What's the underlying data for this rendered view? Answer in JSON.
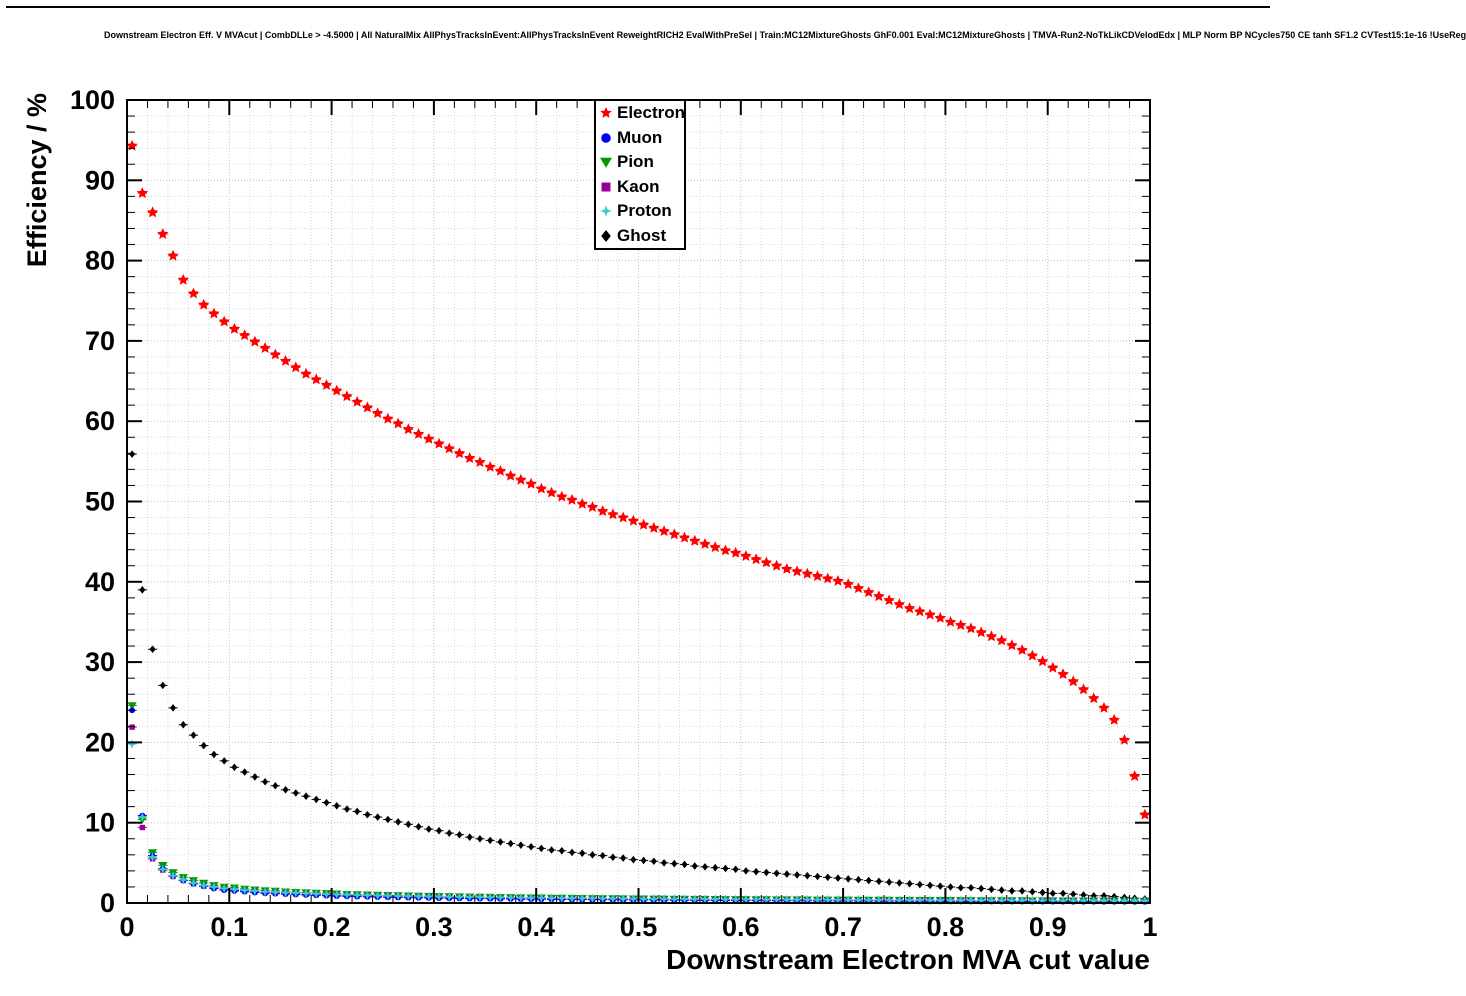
{
  "page": {
    "background": "#ffffff",
    "frame_color": "#000000"
  },
  "chart_data": {
    "type": "scatter",
    "title": "Downstream Electron Eff. V MVAcut | CombDLLe > -4.5000 | All NaturalMix AllPhysTracksInEvent:AllPhysTracksInEvent ReweightRICH2 EvalWithPreSel | Train:MC12MixtureGhosts GhF0.001 Eval:MC12MixtureGhosts | TMVA-Run2-NoTkLikCDVelodEdx | MLP Norm BP NCycles750 CE tanh SF1.2 CVTest15:1e-16 !UseReg",
    "xlabel": "Downstream Electron MVA cut value",
    "ylabel": "Efficiency / %",
    "xlim": [
      0,
      1
    ],
    "ylim": [
      0,
      100
    ],
    "x_ticks": [
      0,
      0.1,
      0.2,
      0.3,
      0.4,
      0.5,
      0.6,
      0.7,
      0.8,
      0.9,
      1
    ],
    "x_tick_labels": [
      "0",
      "0.1",
      "0.2",
      "0.3",
      "0.4",
      "0.5",
      "0.6",
      "0.7",
      "0.8",
      "0.9",
      "1"
    ],
    "y_ticks": [
      0,
      10,
      20,
      30,
      40,
      50,
      60,
      70,
      80,
      90,
      100
    ],
    "y_tick_labels": [
      "0",
      "10",
      "20",
      "30",
      "40",
      "50",
      "60",
      "70",
      "80",
      "90",
      "100"
    ],
    "grid": {
      "style": "dotted",
      "minor_color": "#d8d8d8",
      "major_color": "#c0c0c0"
    },
    "legend": {
      "position": "top-center",
      "border_color": "#000000",
      "background": "#ffffff"
    },
    "x": [
      0.005,
      0.015,
      0.025,
      0.035,
      0.045,
      0.055,
      0.065,
      0.075,
      0.085,
      0.095,
      0.105,
      0.115,
      0.125,
      0.135,
      0.145,
      0.155,
      0.165,
      0.175,
      0.185,
      0.195,
      0.205,
      0.215,
      0.225,
      0.235,
      0.245,
      0.255,
      0.265,
      0.275,
      0.285,
      0.295,
      0.305,
      0.315,
      0.325,
      0.335,
      0.345,
      0.355,
      0.365,
      0.375,
      0.385,
      0.395,
      0.405,
      0.415,
      0.425,
      0.435,
      0.445,
      0.455,
      0.465,
      0.475,
      0.485,
      0.495,
      0.505,
      0.515,
      0.525,
      0.535,
      0.545,
      0.555,
      0.565,
      0.575,
      0.585,
      0.595,
      0.605,
      0.615,
      0.625,
      0.635,
      0.645,
      0.655,
      0.665,
      0.675,
      0.685,
      0.695,
      0.705,
      0.715,
      0.725,
      0.735,
      0.745,
      0.755,
      0.765,
      0.775,
      0.785,
      0.795,
      0.805,
      0.815,
      0.825,
      0.835,
      0.845,
      0.855,
      0.865,
      0.875,
      0.885,
      0.895,
      0.905,
      0.915,
      0.925,
      0.935,
      0.945,
      0.955,
      0.965,
      0.975,
      0.985,
      0.995
    ],
    "series": [
      {
        "name": "Electron",
        "color": "#ff0000",
        "marker": "star",
        "values": [
          94.3,
          88.4,
          86.0,
          83.3,
          80.6,
          77.6,
          75.9,
          74.5,
          73.4,
          72.4,
          71.5,
          70.7,
          69.9,
          69.1,
          68.3,
          67.5,
          66.7,
          65.9,
          65.2,
          64.5,
          63.8,
          63.1,
          62.4,
          61.7,
          61.0,
          60.3,
          59.7,
          59.0,
          58.4,
          57.8,
          57.2,
          56.6,
          56.0,
          55.4,
          54.9,
          54.3,
          53.8,
          53.2,
          52.7,
          52.2,
          51.6,
          51.1,
          50.6,
          50.2,
          49.7,
          49.3,
          48.8,
          48.4,
          48.0,
          47.6,
          47.1,
          46.7,
          46.3,
          45.9,
          45.5,
          45.1,
          44.7,
          44.3,
          43.9,
          43.6,
          43.2,
          42.8,
          42.4,
          42.0,
          41.6,
          41.3,
          41.0,
          40.7,
          40.4,
          40.1,
          39.7,
          39.2,
          38.7,
          38.2,
          37.7,
          37.2,
          36.7,
          36.3,
          35.9,
          35.5,
          35.0,
          34.6,
          34.2,
          33.7,
          33.2,
          32.7,
          32.1,
          31.5,
          30.8,
          30.1,
          29.3,
          28.5,
          27.6,
          26.6,
          25.5,
          24.3,
          22.8,
          20.3,
          15.8,
          11.0
        ]
      },
      {
        "name": "Muon",
        "color": "#0000ff",
        "marker": "circle",
        "values": [
          24.0,
          10.9,
          5.9,
          4.3,
          3.4,
          2.8,
          2.4,
          2.1,
          1.8,
          1.6,
          1.5,
          1.4,
          1.3,
          1.2,
          1.15,
          1.1,
          1.05,
          1.0,
          0.95,
          0.9,
          0.85,
          0.82,
          0.79,
          0.76,
          0.73,
          0.7,
          0.68,
          0.66,
          0.64,
          0.62,
          0.6,
          0.58,
          0.57,
          0.55,
          0.54,
          0.52,
          0.51,
          0.5,
          0.48,
          0.47,
          0.46,
          0.45,
          0.44,
          0.43,
          0.42,
          0.41,
          0.4,
          0.39,
          0.38,
          0.38,
          0.37,
          0.36,
          0.35,
          0.35,
          0.34,
          0.33,
          0.33,
          0.32,
          0.31,
          0.31,
          0.3,
          0.29,
          0.29,
          0.28,
          0.28,
          0.27,
          0.27,
          0.26,
          0.26,
          0.25,
          0.25,
          0.24,
          0.24,
          0.23,
          0.23,
          0.22,
          0.22,
          0.21,
          0.21,
          0.2,
          0.2,
          0.2,
          0.19,
          0.19,
          0.18,
          0.18,
          0.18,
          0.17,
          0.17,
          0.16,
          0.16,
          0.16,
          0.15,
          0.15,
          0.15,
          0.14,
          0.14,
          0.14,
          0.13,
          0.13
        ]
      },
      {
        "name": "Pion",
        "color": "#009900",
        "marker": "triangle-down",
        "values": [
          24.6,
          10.4,
          6.3,
          4.7,
          3.8,
          3.2,
          2.8,
          2.5,
          2.2,
          2.0,
          1.9,
          1.75,
          1.65,
          1.55,
          1.5,
          1.4,
          1.35,
          1.3,
          1.25,
          1.2,
          1.15,
          1.1,
          1.07,
          1.03,
          1.0,
          0.97,
          0.94,
          0.91,
          0.88,
          0.86,
          0.83,
          0.81,
          0.79,
          0.77,
          0.75,
          0.73,
          0.71,
          0.7,
          0.68,
          0.66,
          0.65,
          0.63,
          0.62,
          0.61,
          0.6,
          0.58,
          0.57,
          0.56,
          0.55,
          0.54,
          0.53,
          0.52,
          0.51,
          0.5,
          0.5,
          0.49,
          0.48,
          0.47,
          0.46,
          0.46,
          0.45,
          0.44,
          0.44,
          0.43,
          0.42,
          0.42,
          0.41,
          0.4,
          0.4,
          0.39,
          0.39,
          0.38,
          0.38,
          0.37,
          0.37,
          0.36,
          0.36,
          0.35,
          0.35,
          0.34,
          0.34,
          0.33,
          0.33,
          0.32,
          0.32,
          0.32,
          0.31,
          0.31,
          0.3,
          0.3,
          0.3,
          0.29,
          0.29,
          0.28,
          0.28,
          0.28,
          0.27,
          0.27,
          0.27,
          0.26
        ]
      },
      {
        "name": "Kaon",
        "color": "#990099",
        "marker": "square",
        "values": [
          21.9,
          9.4,
          5.5,
          4.1,
          3.3,
          2.8,
          2.4,
          2.1,
          1.9,
          1.7,
          1.6,
          1.5,
          1.4,
          1.3,
          1.25,
          1.2,
          1.15,
          1.1,
          1.05,
          1.0,
          0.97,
          0.94,
          0.91,
          0.88,
          0.85,
          0.82,
          0.8,
          0.77,
          0.75,
          0.73,
          0.71,
          0.69,
          0.67,
          0.65,
          0.64,
          0.62,
          0.61,
          0.59,
          0.58,
          0.57,
          0.55,
          0.54,
          0.53,
          0.52,
          0.51,
          0.5,
          0.49,
          0.48,
          0.47,
          0.46,
          0.45,
          0.44,
          0.44,
          0.43,
          0.42,
          0.41,
          0.41,
          0.4,
          0.39,
          0.39,
          0.38,
          0.37,
          0.37,
          0.36,
          0.36,
          0.35,
          0.35,
          0.34,
          0.34,
          0.33,
          0.33,
          0.32,
          0.32,
          0.31,
          0.31,
          0.3,
          0.3,
          0.29,
          0.29,
          0.29,
          0.28,
          0.28,
          0.27,
          0.27,
          0.27,
          0.26,
          0.26,
          0.26,
          0.25,
          0.25,
          0.25,
          0.24,
          0.24,
          0.24,
          0.23,
          0.23,
          0.23,
          0.22,
          0.22,
          0.22
        ]
      },
      {
        "name": "Proton",
        "color": "#33cccc",
        "marker": "star4",
        "values": [
          19.8,
          10.7,
          5.7,
          4.2,
          3.4,
          2.9,
          2.5,
          2.2,
          2.0,
          1.8,
          1.7,
          1.6,
          1.5,
          1.4,
          1.35,
          1.3,
          1.25,
          1.2,
          1.15,
          1.1,
          1.07,
          1.04,
          1.0,
          0.97,
          0.94,
          0.91,
          0.89,
          0.86,
          0.84,
          0.82,
          0.8,
          0.78,
          0.76,
          0.74,
          0.72,
          0.7,
          0.69,
          0.67,
          0.66,
          0.64,
          0.63,
          0.62,
          0.6,
          0.59,
          0.58,
          0.57,
          0.56,
          0.55,
          0.54,
          0.53,
          0.52,
          0.51,
          0.51,
          0.5,
          0.49,
          0.48,
          0.48,
          0.47,
          0.46,
          0.45,
          0.45,
          0.44,
          0.43,
          0.43,
          0.42,
          0.42,
          0.41,
          0.41,
          0.4,
          0.4,
          0.39,
          0.39,
          0.38,
          0.38,
          0.37,
          0.37,
          0.36,
          0.36,
          0.35,
          0.35,
          0.34,
          0.34,
          0.34,
          0.33,
          0.33,
          0.32,
          0.32,
          0.32,
          0.31,
          0.31,
          0.31,
          0.3,
          0.3,
          0.3,
          0.29,
          0.29,
          0.29,
          0.28,
          0.28,
          0.28
        ]
      },
      {
        "name": "Ghost",
        "color": "#000000",
        "marker": "diamond",
        "values": [
          55.9,
          39.0,
          31.6,
          27.1,
          24.3,
          22.2,
          20.9,
          19.6,
          18.5,
          17.7,
          16.9,
          16.3,
          15.7,
          15.1,
          14.6,
          14.1,
          13.7,
          13.3,
          12.9,
          12.5,
          12.1,
          11.7,
          11.4,
          11.0,
          10.7,
          10.4,
          10.1,
          9.8,
          9.5,
          9.2,
          9.0,
          8.7,
          8.5,
          8.2,
          8.0,
          7.8,
          7.6,
          7.4,
          7.2,
          7.0,
          6.8,
          6.6,
          6.5,
          6.3,
          6.2,
          6.0,
          5.9,
          5.7,
          5.6,
          5.4,
          5.3,
          5.2,
          5.0,
          4.9,
          4.8,
          4.6,
          4.5,
          4.4,
          4.3,
          4.2,
          4.0,
          3.9,
          3.8,
          3.7,
          3.6,
          3.5,
          3.4,
          3.3,
          3.2,
          3.1,
          3.0,
          2.9,
          2.8,
          2.7,
          2.6,
          2.5,
          2.4,
          2.3,
          2.2,
          2.1,
          2.0,
          1.9,
          1.9,
          1.8,
          1.7,
          1.6,
          1.5,
          1.5,
          1.4,
          1.3,
          1.2,
          1.2,
          1.1,
          1.0,
          0.9,
          0.9,
          0.8,
          0.7,
          0.6,
          0.5
        ]
      }
    ]
  }
}
